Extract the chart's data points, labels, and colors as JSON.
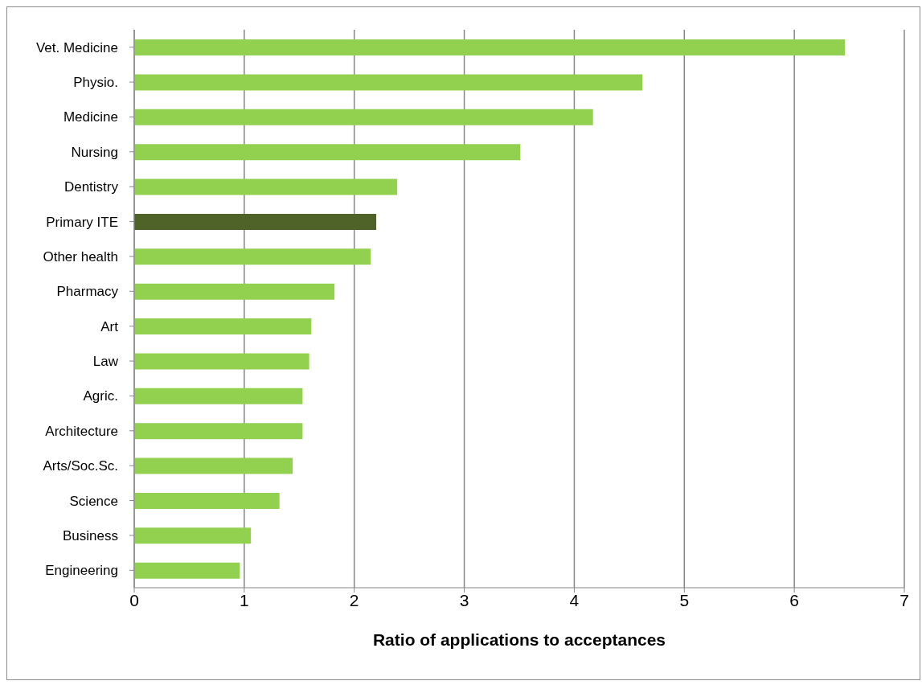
{
  "chart_data": {
    "type": "bar",
    "orientation": "horizontal",
    "xlabel": "Ratio of applications to acceptances",
    "categories": [
      "Vet. Medicine",
      "Physio.",
      "Medicine",
      "Nursing",
      "Dentistry",
      "Primary ITE",
      "Other health",
      "Pharmacy",
      "Art",
      "Law",
      "Agric.",
      "Architecture",
      "Arts/Soc.Sc.",
      "Science",
      "Business",
      "Engineering"
    ],
    "values": [
      6.46,
      4.62,
      4.17,
      3.51,
      2.39,
      2.2,
      2.15,
      1.82,
      1.61,
      1.59,
      1.53,
      1.53,
      1.44,
      1.32,
      1.06,
      0.96
    ],
    "colors": [
      "#92d050",
      "#92d050",
      "#92d050",
      "#92d050",
      "#92d050",
      "#4f6228",
      "#92d050",
      "#92d050",
      "#92d050",
      "#92d050",
      "#92d050",
      "#92d050",
      "#92d050",
      "#92d050",
      "#92d050",
      "#92d050"
    ],
    "xlim": [
      0,
      7
    ],
    "xticks": [
      0,
      1,
      2,
      3,
      4,
      5,
      6,
      7
    ],
    "grid": "x",
    "legend": false
  }
}
